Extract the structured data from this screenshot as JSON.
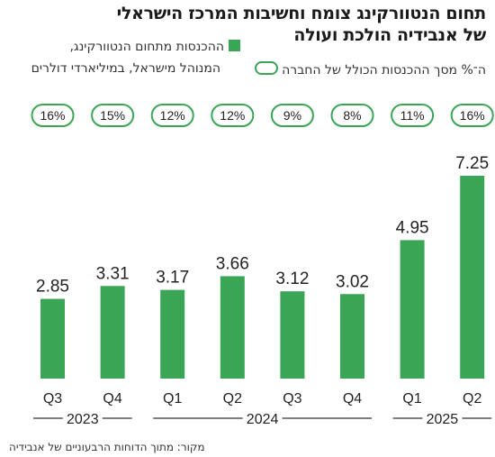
{
  "header": {
    "title_line1": "תחום הנטוורקינג צומח וחשיבות המרכז הישראלי",
    "title_line2": "של אנבידיה הולכת ועולה",
    "legend_bar": "ההכנסות מתחום הנטוורקינג,",
    "legend_bar_line2": "המנוהל מישראל, במיליארדי דולרים",
    "legend_oval": "ה־% מסך ההכנסות הכולל של החברה"
  },
  "source": "מקור: מתוך הדוחות הרבעוניים של אנבידיה",
  "colors": {
    "bar": "#3aa655",
    "oval_border": "#3aa655"
  },
  "chart_data": {
    "type": "bar",
    "categories": [
      "Q3",
      "Q4",
      "Q1",
      "Q2",
      "Q3",
      "Q4",
      "Q1",
      "Q2"
    ],
    "years": [
      {
        "label": "2023",
        "start": 0,
        "end": 1
      },
      {
        "label": "2024",
        "start": 2,
        "end": 5
      },
      {
        "label": "2025",
        "start": 6,
        "end": 7
      }
    ],
    "series": [
      {
        "values": [
          2.85,
          3.31,
          3.17,
          3.66,
          3.12,
          3.02,
          4.95,
          7.25
        ]
      }
    ],
    "value_labels": [
      "2.85",
      "3.31",
      "3.17",
      "3.66",
      "3.12",
      "3.02",
      "4.95",
      "7.25"
    ],
    "percent_share": [
      "16%",
      "15%",
      "12%",
      "12%",
      "9%",
      "8%",
      "11%",
      "16%"
    ],
    "ylim": [
      0,
      8
    ]
  }
}
